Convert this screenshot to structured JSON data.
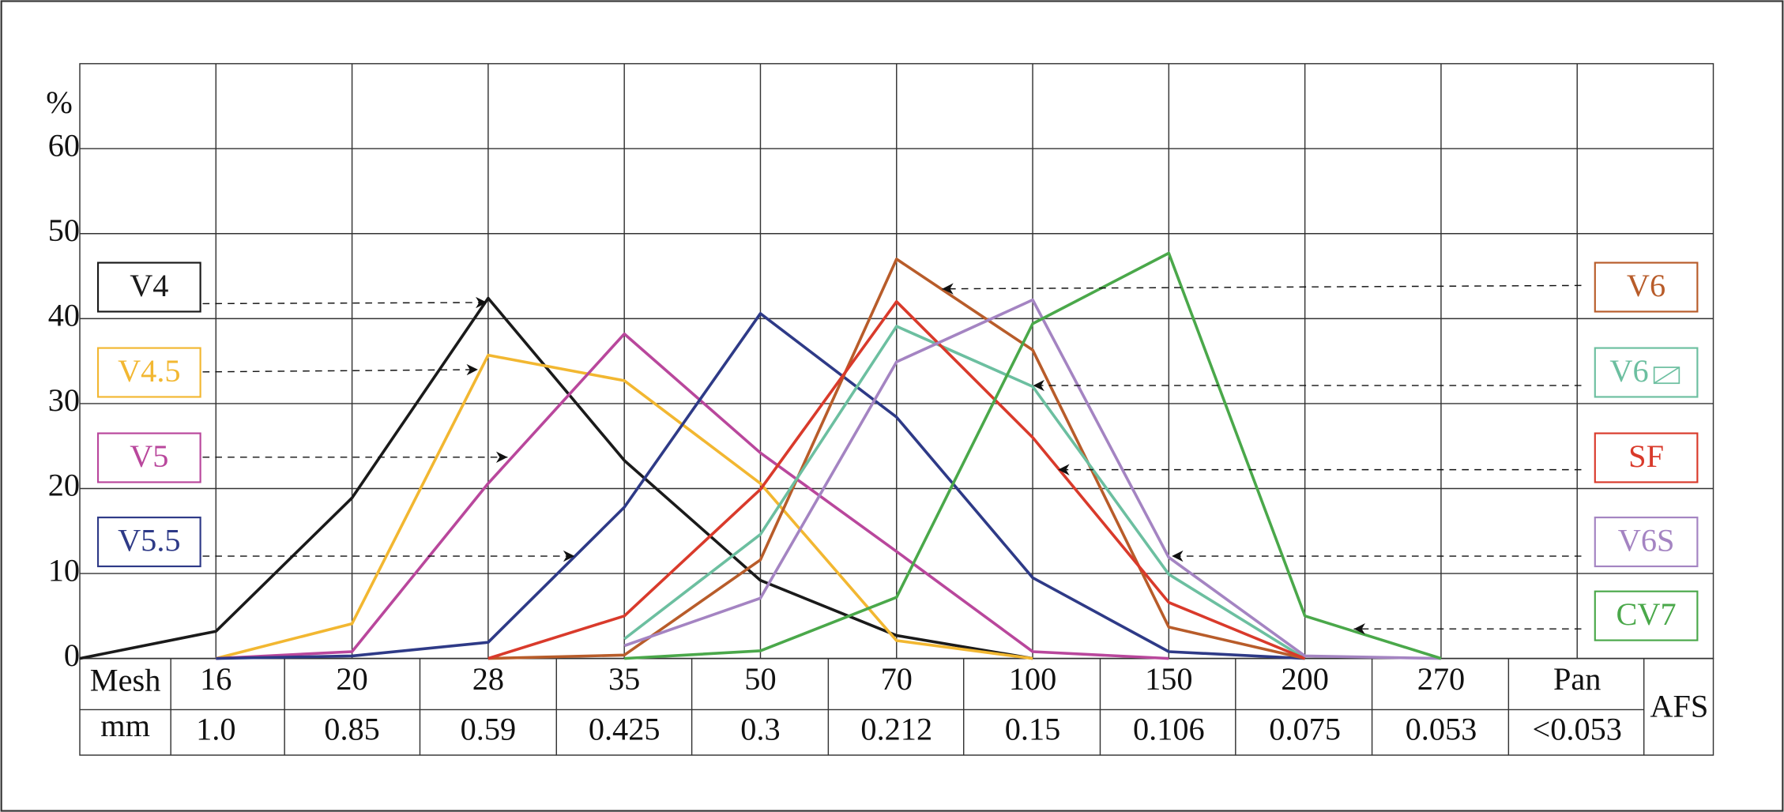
{
  "chart_data": {
    "type": "line",
    "y_unit": "%",
    "categories": [
      null,
      "16",
      "20",
      "28",
      "35",
      "50",
      "70",
      "100",
      "150",
      "200",
      "270",
      "Pan"
    ],
    "row_labels": [
      "Mesh",
      "mm"
    ],
    "mm": [
      null,
      "1.0",
      "0.85",
      "0.59",
      "0.425",
      "0.3",
      "0.212",
      "0.15",
      "0.106",
      "0.075",
      "0.053",
      "<0.053"
    ],
    "corner_label": "AFS",
    "ylim": [
      0,
      70
    ],
    "yticks": [
      0,
      10,
      20,
      30,
      40,
      50,
      60
    ],
    "grid": true,
    "series": [
      {
        "name": "V4",
        "color": "#1a1a1a",
        "values": [
          0,
          3.2,
          18.9,
          42.4,
          23.3,
          9.2,
          2.7,
          0,
          null,
          null,
          null,
          null
        ]
      },
      {
        "name": "V4.5",
        "color": "#f2b731",
        "values": [
          null,
          0,
          4.1,
          35.7,
          32.7,
          20.6,
          2.1,
          0,
          null,
          null,
          null,
          null
        ]
      },
      {
        "name": "V5",
        "color": "#b9479c",
        "values": [
          null,
          0,
          0.8,
          20.6,
          38.2,
          24.2,
          12.6,
          0.8,
          0,
          null,
          null,
          null
        ]
      },
      {
        "name": "V5.5",
        "color": "#2e3a87",
        "values": [
          null,
          0,
          0.3,
          1.9,
          17.8,
          40.6,
          28.4,
          9.5,
          0.8,
          0,
          null,
          null
        ]
      },
      {
        "name": "V6",
        "color": "#b85c2a",
        "values": [
          null,
          null,
          null,
          0,
          0.4,
          11.6,
          47.0,
          36.3,
          3.7,
          0,
          null,
          null
        ]
      },
      {
        "name": "V6",
        "color": "#6cbfa0",
        "values": [
          null,
          null,
          null,
          null,
          2.3,
          14.6,
          39.1,
          32.0,
          9.9,
          0,
          null,
          null
        ]
      },
      {
        "name": "SF",
        "color": "#d93a2b",
        "values": [
          null,
          null,
          null,
          0,
          5.0,
          19.9,
          42.0,
          26.0,
          6.6,
          0,
          null,
          null
        ]
      },
      {
        "name": "V6S",
        "color": "#a484c2",
        "values": [
          null,
          null,
          null,
          null,
          1.5,
          7.1,
          34.9,
          42.2,
          11.9,
          0.3,
          0,
          null
        ]
      },
      {
        "name": "CV7",
        "color": "#4aa84a",
        "values": [
          null,
          null,
          null,
          null,
          0,
          0.9,
          7.2,
          39.4,
          47.7,
          5.0,
          0,
          null
        ]
      }
    ]
  }
}
